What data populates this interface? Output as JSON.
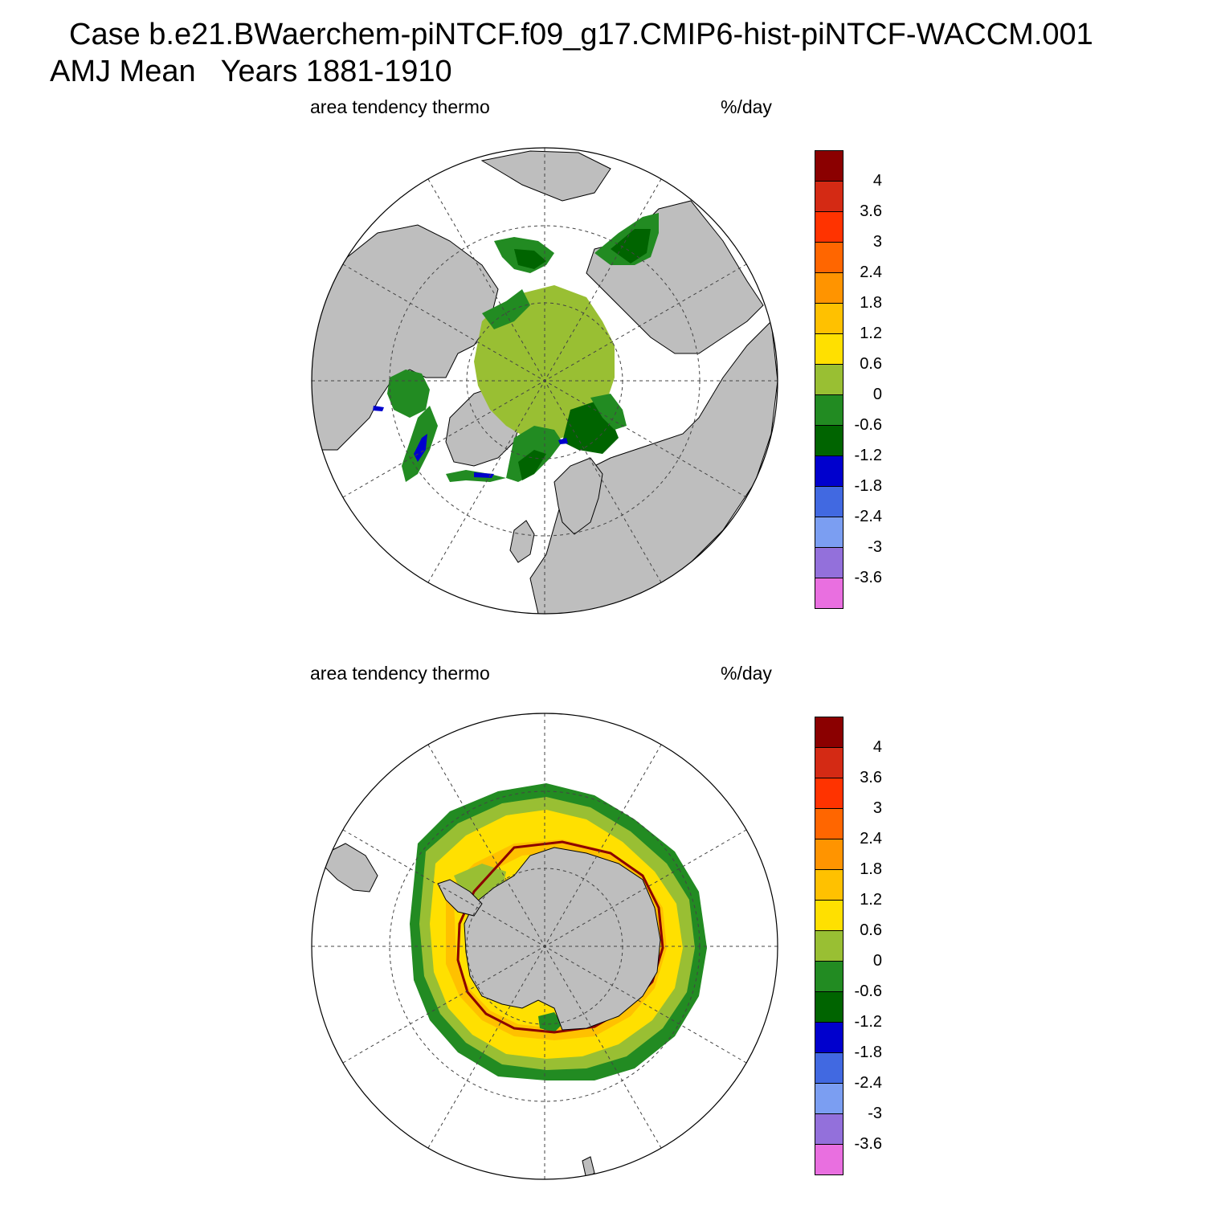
{
  "title": {
    "line1": "Case b.e21.BWaerchem-piNTCF.f09_g17.CMIP6-hist-piNTCF-WACCM.001",
    "line2": "AMJ Mean   Years 1881-1910"
  },
  "colorbar": {
    "colors": [
      "#8b0000",
      "#d42a14",
      "#ff3300",
      "#ff6600",
      "#ff9400",
      "#ffc100",
      "#ffe000",
      "#99bf33",
      "#228b22",
      "#006400",
      "#0000cd",
      "#4169e1",
      "#7b9ef2",
      "#9370db",
      "#e96fe0"
    ],
    "labels": [
      "4",
      "3.6",
      "3",
      "2.4",
      "1.8",
      "1.2",
      "0.6",
      "0",
      "-0.6",
      "-1.2",
      "-1.8",
      "-2.4",
      "-3",
      "-3.6"
    ]
  },
  "panels": [
    {
      "id": "north",
      "variable_label": "area tendency thermo",
      "units_label": "%/day",
      "hemisphere": "Arctic"
    },
    {
      "id": "south",
      "variable_label": "area tendency thermo",
      "units_label": "%/day",
      "hemisphere": "Antarctic"
    }
  ],
  "map_colors": {
    "land": "#bebebe",
    "ocean": "#ffffff",
    "coast": "#000000"
  }
}
